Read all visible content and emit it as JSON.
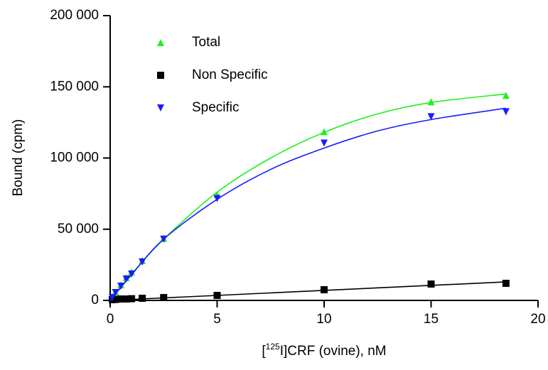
{
  "chart_data": {
    "type": "scatter",
    "x_label": [
      "[",
      "125",
      "I]CRF (ovine), nM"
    ],
    "y_label": "Bound (cpm)",
    "xlim": [
      0,
      20
    ],
    "xticks": [
      0,
      5,
      10,
      15,
      20
    ],
    "ylim": [
      0,
      200000
    ],
    "yticks": [
      0,
      {
        "value": 50000,
        "label": "50 000"
      },
      {
        "value": 100000,
        "label": "100 000"
      },
      {
        "value": 150000,
        "label": "150 000"
      },
      {
        "value": 200000,
        "label": "200 000"
      }
    ],
    "legend": "top-left",
    "series": [
      {
        "name": "Total",
        "color": "#22ee22",
        "marker": "triangle-up",
        "x": [
          0.1,
          0.25,
          0.5,
          0.75,
          1,
          1.5,
          2.5,
          5,
          10,
          15,
          18.5
        ],
        "values": [
          2500,
          6000,
          11000,
          16000,
          20000,
          28000,
          43500,
          74500,
          118500,
          139500,
          144000
        ],
        "fit_x": [
          0,
          1,
          2.5,
          5,
          7.5,
          10,
          12.5,
          15,
          18.5
        ],
        "fit_values": [
          0,
          18500,
          43000,
          76000,
          100000,
          118000,
          131000,
          139000,
          145000
        ]
      },
      {
        "name": "Non Specific",
        "color": "#000000",
        "marker": "square",
        "x": [
          0.1,
          0.25,
          0.5,
          0.75,
          1,
          1.5,
          2.5,
          5,
          10,
          15,
          18.5
        ],
        "values": [
          500,
          700,
          1000,
          1000,
          1200,
          1500,
          2000,
          3500,
          7500,
          11500,
          12000
        ],
        "fit_x": [
          0,
          18.5
        ],
        "fit_values": [
          0,
          13000
        ]
      },
      {
        "name": "Specific",
        "color": "#1a1aff",
        "marker": "triangle-down",
        "x": [
          0.1,
          0.25,
          0.5,
          0.75,
          1,
          1.5,
          2.5,
          5,
          10,
          15,
          18.5
        ],
        "values": [
          2000,
          5500,
          10000,
          15000,
          18500,
          27000,
          43000,
          71500,
          110500,
          129000,
          132500
        ],
        "fit_x": [
          0,
          1,
          2.5,
          5,
          7.5,
          10,
          12.5,
          15,
          18.5
        ],
        "fit_values": [
          0,
          18000,
          43000,
          71000,
          92000,
          107000,
          119000,
          127000,
          135000
        ]
      }
    ]
  }
}
